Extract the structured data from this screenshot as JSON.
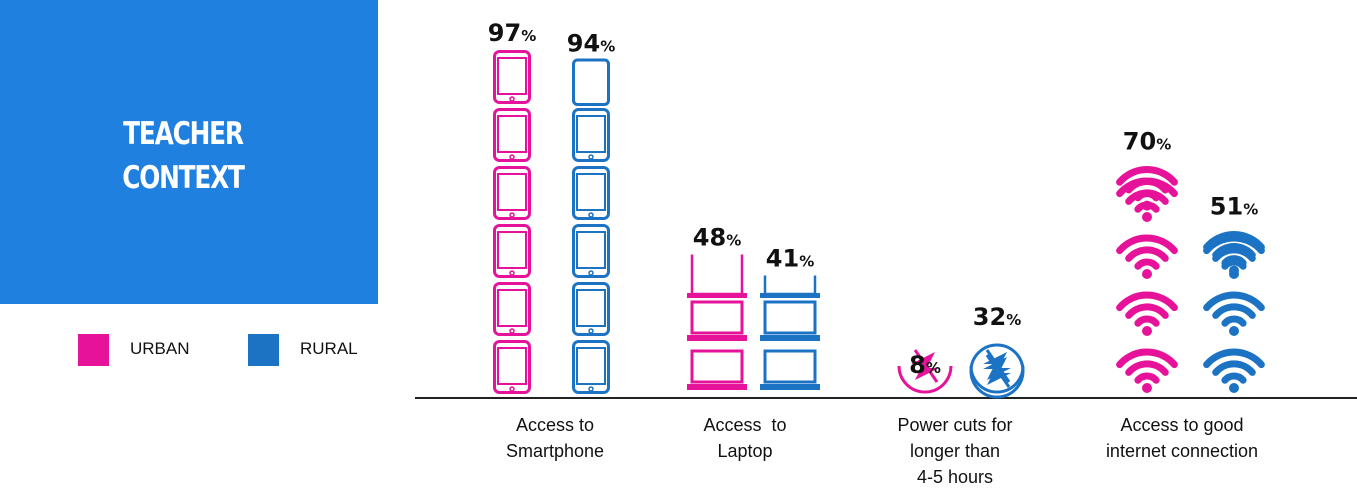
{
  "colors": {
    "urban": "#e6139a",
    "rural": "#1c73c4",
    "title_bg": "#1f80e0"
  },
  "title_lines": [
    "TEACHER",
    "CONTEXT"
  ],
  "legend": [
    {
      "label": "URBAN",
      "color": "#e6139a"
    },
    {
      "label": "RURAL",
      "color": "#1c73c4"
    }
  ],
  "chart_data": {
    "type": "bar",
    "categories": [
      "Access to Smartphone",
      "Access  to Laptop",
      "Power cuts for longer than 4-5 hours",
      "Access to good internet connection"
    ],
    "category_lines": [
      [
        "Access to",
        "Smartphone"
      ],
      [
        "Access  to",
        "Laptop"
      ],
      [
        "Power cuts for",
        "longer than",
        "4-5 hours"
      ],
      [
        "Access to good",
        "internet connection"
      ]
    ],
    "icons": [
      "smartphone-icon",
      "laptop-icon",
      "power-cut-icon",
      "wifi-icon"
    ],
    "series": [
      {
        "name": "URBAN",
        "values": [
          97,
          48,
          8,
          70
        ]
      },
      {
        "name": "RURAL",
        "values": [
          94,
          41,
          32,
          51
        ]
      }
    ],
    "value_suffix": "%",
    "legend_position": "bottom-left",
    "grid": false
  }
}
